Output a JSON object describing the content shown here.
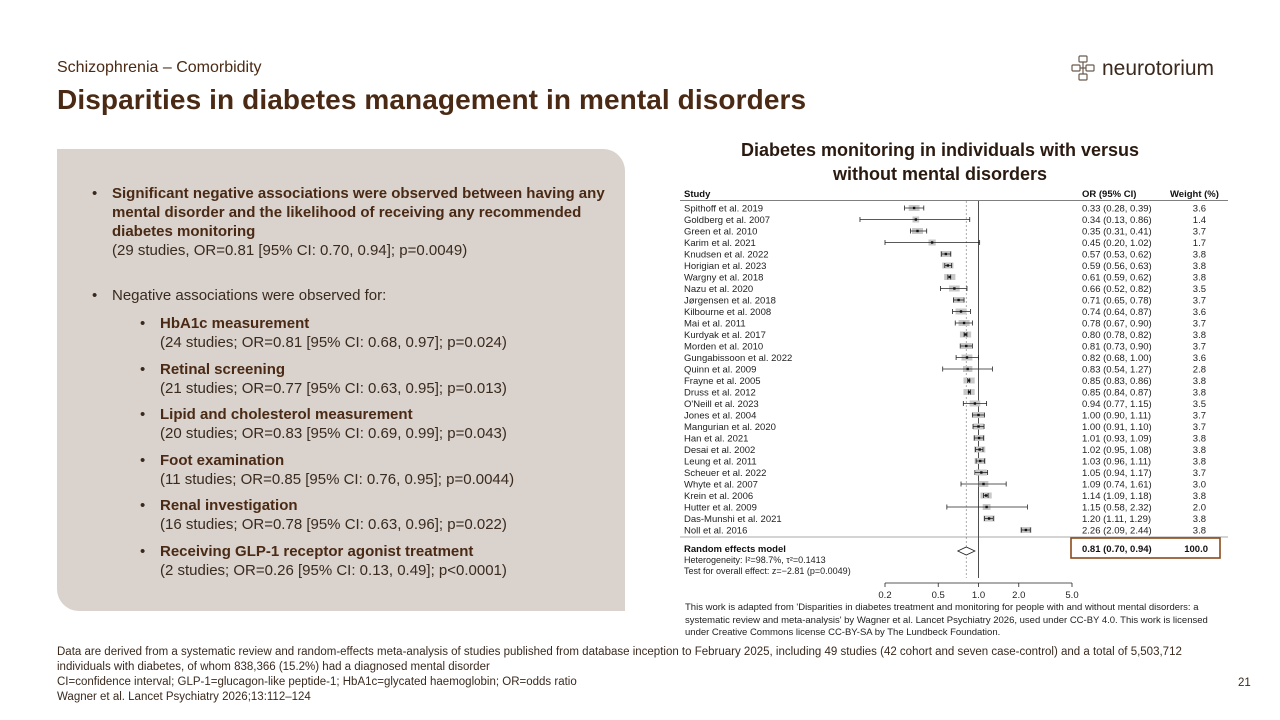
{
  "header": {
    "section": "Schizophrenia – Comorbidity",
    "title": "Disparities in diabetes management in mental disorders",
    "logo_text": "neurotorium"
  },
  "bullets": {
    "main_bold": "Significant negative associations were observed between having any mental disorder and the likelihood of receiving any recommended diabetes monitoring",
    "main_detail": "(29 studies, OR=0.81 [95% CI: 0.70, 0.94]; p=0.0049)",
    "negative_intro": "Negative associations were observed for:",
    "items": [
      {
        "label": "HbA1c measurement",
        "detail": "(24 studies; OR=0.81 [95% CI: 0.68, 0.97]; p=0.024)"
      },
      {
        "label": "Retinal screening",
        "detail": "(21 studies; OR=0.77 [95% CI: 0.63, 0.95]; p=0.013)"
      },
      {
        "label": "Lipid and cholesterol measurement",
        "detail": "(20 studies; OR=0.83 [95% CI: 0.69, 0.99]; p=0.043)"
      },
      {
        "label": "Foot examination",
        "detail": "(11 studies; OR=0.85 [95% CI: 0.76, 0.95]; p=0.0044)"
      },
      {
        "label": "Renal investigation",
        "detail": "(16 studies; OR=0.78 [95% CI: 0.63, 0.96]; p=0.022)"
      },
      {
        "label": "Receiving GLP-1 receptor agonist treatment",
        "detail": "(2 studies; OR=0.26 [95% CI: 0.13, 0.49]; p<0.0001)"
      }
    ]
  },
  "chart_data": {
    "type": "forest",
    "title": "Diabetes monitoring in individuals with versus without mental disorders",
    "columns": {
      "study": "Study",
      "or": "OR (95% CI)",
      "weight": "Weight (%)"
    },
    "x_scale": "log",
    "xlim": [
      0.2,
      5.0
    ],
    "x_ticks": [
      "0.2",
      "0.5",
      "1.0",
      "2.0",
      "5.0"
    ],
    "null_line": 1.0,
    "studies": [
      {
        "name": "Spithoff et al. 2019",
        "or": 0.33,
        "lo": 0.28,
        "hi": 0.39,
        "weight": "3.6",
        "ci_text": "0.33 (0.28, 0.39)"
      },
      {
        "name": "Goldberg et al. 2007",
        "or": 0.34,
        "lo": 0.13,
        "hi": 0.86,
        "weight": "1.4",
        "ci_text": "0.34 (0.13, 0.86)"
      },
      {
        "name": "Green et al. 2010",
        "or": 0.35,
        "lo": 0.31,
        "hi": 0.41,
        "weight": "3.7",
        "ci_text": "0.35 (0.31, 0.41)"
      },
      {
        "name": "Karim et al. 2021",
        "or": 0.45,
        "lo": 0.2,
        "hi": 1.02,
        "weight": "1.7",
        "ci_text": "0.45 (0.20, 1.02)"
      },
      {
        "name": "Knudsen et al. 2022",
        "or": 0.57,
        "lo": 0.53,
        "hi": 0.62,
        "weight": "3.8",
        "ci_text": "0.57 (0.53, 0.62)"
      },
      {
        "name": "Horigian et al. 2023",
        "or": 0.59,
        "lo": 0.56,
        "hi": 0.63,
        "weight": "3.8",
        "ci_text": "0.59 (0.56, 0.63)"
      },
      {
        "name": "Wargny et al. 2018",
        "or": 0.61,
        "lo": 0.59,
        "hi": 0.62,
        "weight": "3.8",
        "ci_text": "0.61 (0.59, 0.62)"
      },
      {
        "name": "Nazu et al. 2020",
        "or": 0.66,
        "lo": 0.52,
        "hi": 0.82,
        "weight": "3.5",
        "ci_text": "0.66 (0.52, 0.82)"
      },
      {
        "name": "Jørgensen et al. 2018",
        "or": 0.71,
        "lo": 0.65,
        "hi": 0.78,
        "weight": "3.7",
        "ci_text": "0.71 (0.65, 0.78)"
      },
      {
        "name": "Kilbourne et al. 2008",
        "or": 0.74,
        "lo": 0.64,
        "hi": 0.87,
        "weight": "3.6",
        "ci_text": "0.74 (0.64, 0.87)"
      },
      {
        "name": "Mai et al. 2011",
        "or": 0.78,
        "lo": 0.67,
        "hi": 0.9,
        "weight": "3.7",
        "ci_text": "0.78 (0.67, 0.90)"
      },
      {
        "name": "Kurdyak et al. 2017",
        "or": 0.8,
        "lo": 0.78,
        "hi": 0.82,
        "weight": "3.8",
        "ci_text": "0.80 (0.78, 0.82)"
      },
      {
        "name": "Morden et al. 2010",
        "or": 0.81,
        "lo": 0.73,
        "hi": 0.9,
        "weight": "3.7",
        "ci_text": "0.81 (0.73, 0.90)"
      },
      {
        "name": "Gungabissoon et al. 2022",
        "or": 0.82,
        "lo": 0.68,
        "hi": 1.0,
        "weight": "3.6",
        "ci_text": "0.82 (0.68, 1.00)"
      },
      {
        "name": "Quinn et al. 2009",
        "or": 0.83,
        "lo": 0.54,
        "hi": 1.27,
        "weight": "2.8",
        "ci_text": "0.83 (0.54, 1.27)"
      },
      {
        "name": "Frayne et al. 2005",
        "or": 0.85,
        "lo": 0.83,
        "hi": 0.86,
        "weight": "3.8",
        "ci_text": "0.85 (0.83, 0.86)"
      },
      {
        "name": "Druss et al. 2012",
        "or": 0.85,
        "lo": 0.84,
        "hi": 0.87,
        "weight": "3.8",
        "ci_text": "0.85 (0.84, 0.87)"
      },
      {
        "name": "O'Neill et al. 2023",
        "or": 0.94,
        "lo": 0.77,
        "hi": 1.15,
        "weight": "3.5",
        "ci_text": "0.94 (0.77, 1.15)"
      },
      {
        "name": "Jones et al. 2004",
        "or": 1.0,
        "lo": 0.9,
        "hi": 1.11,
        "weight": "3.7",
        "ci_text": "1.00 (0.90, 1.11)"
      },
      {
        "name": "Mangurian et al. 2020",
        "or": 1.0,
        "lo": 0.91,
        "hi": 1.1,
        "weight": "3.7",
        "ci_text": "1.00 (0.91, 1.10)"
      },
      {
        "name": "Han et al. 2021",
        "or": 1.01,
        "lo": 0.93,
        "hi": 1.09,
        "weight": "3.8",
        "ci_text": "1.01 (0.93, 1.09)"
      },
      {
        "name": "Desai et al. 2002",
        "or": 1.02,
        "lo": 0.95,
        "hi": 1.08,
        "weight": "3.8",
        "ci_text": "1.02 (0.95, 1.08)"
      },
      {
        "name": "Leung et al. 2011",
        "or": 1.03,
        "lo": 0.96,
        "hi": 1.11,
        "weight": "3.8",
        "ci_text": "1.03 (0.96, 1.11)"
      },
      {
        "name": "Scheuer et al. 2022",
        "or": 1.05,
        "lo": 0.94,
        "hi": 1.17,
        "weight": "3.7",
        "ci_text": "1.05 (0.94, 1.17)"
      },
      {
        "name": "Whyte et al. 2007",
        "or": 1.09,
        "lo": 0.74,
        "hi": 1.61,
        "weight": "3.0",
        "ci_text": "1.09 (0.74, 1.61)"
      },
      {
        "name": "Krein et al. 2006",
        "or": 1.14,
        "lo": 1.09,
        "hi": 1.18,
        "weight": "3.8",
        "ci_text": "1.14 (1.09, 1.18)"
      },
      {
        "name": "Hutter et al. 2009",
        "or": 1.15,
        "lo": 0.58,
        "hi": 2.32,
        "weight": "2.0",
        "ci_text": "1.15 (0.58, 2.32)"
      },
      {
        "name": "Das-Munshi et al. 2021",
        "or": 1.2,
        "lo": 1.11,
        "hi": 1.29,
        "weight": "3.8",
        "ci_text": "1.20 (1.11, 1.29)"
      },
      {
        "name": "Noll et al. 2016",
        "or": 2.26,
        "lo": 2.09,
        "hi": 2.44,
        "weight": "3.8",
        "ci_text": "2.26 (2.09, 2.44)"
      }
    ],
    "pooled": {
      "label": "Random effects model",
      "or": 0.81,
      "lo": 0.7,
      "hi": 0.94,
      "ci_text": "0.81 (0.70, 0.94)",
      "weight": "100.0",
      "heterogeneity": "Heterogeneity: I²=98.7%, τ²=0.1413",
      "overall_test": "Test for overall effect: z=−2.81 (p=0.0049)"
    },
    "accent_color": "#8b4a1c"
  },
  "chart_credit": "This work is adapted from 'Disparities in diabetes treatment and monitoring for people with and without mental disorders: a systematic review and meta-analysis' by Wagner et al. Lancet Psychiatry 2026, used under CC-BY 4.0. This work is licensed under Creative Commons license CC-BY-SA by The Lundbeck Foundation.",
  "footer": {
    "line1": "Data are derived from a systematic review and random-effects meta-analysis of studies published from database inception to February 2025, including 49 studies (42 cohort and seven case-control) and a total of 5,503,712 individuals with diabetes, of whom 838,366 (15.2%) had a diagnosed mental disorder",
    "line2": "CI=confidence interval; GLP-1=glucagon-like peptide-1; HbA1c=glycated haemoglobin; OR=odds ratio",
    "line3": "Wagner et al. Lancet Psychiatry 2026;13:112–124",
    "page_number": "21"
  }
}
